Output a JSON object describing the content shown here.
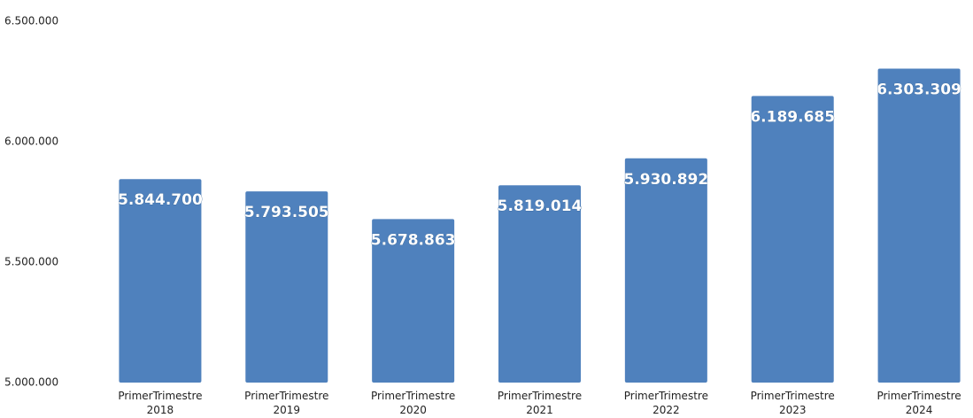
{
  "chart_data": {
    "type": "bar",
    "categories": [
      "PrimerTrimestre\n2018",
      "PrimerTrimestre\n2019",
      "PrimerTrimestre\n2020",
      "PrimerTrimestre\n2021",
      "PrimerTrimestre\n2022",
      "PrimerTrimestre\n2023",
      "PrimerTrimestre\n2024"
    ],
    "values": [
      5844700,
      5793505,
      5678863,
      5819014,
      5930892,
      6189685,
      6303309
    ],
    "value_labels": [
      "5.844.700",
      "5.793.505",
      "5.678.863",
      "5.819.014",
      "5.930.892",
      "6.189.685",
      "6.303.309"
    ],
    "color": "#4f81bd",
    "ylim": [
      5000000,
      6500000
    ],
    "yticks": [
      {
        "value": 5000000,
        "label": "5.000.000"
      },
      {
        "value": 5500000,
        "label": "5.500.000"
      },
      {
        "value": 6000000,
        "label": "6.000.000"
      },
      {
        "value": 6500000,
        "label": "6.500.000"
      }
    ],
    "grid": false
  }
}
